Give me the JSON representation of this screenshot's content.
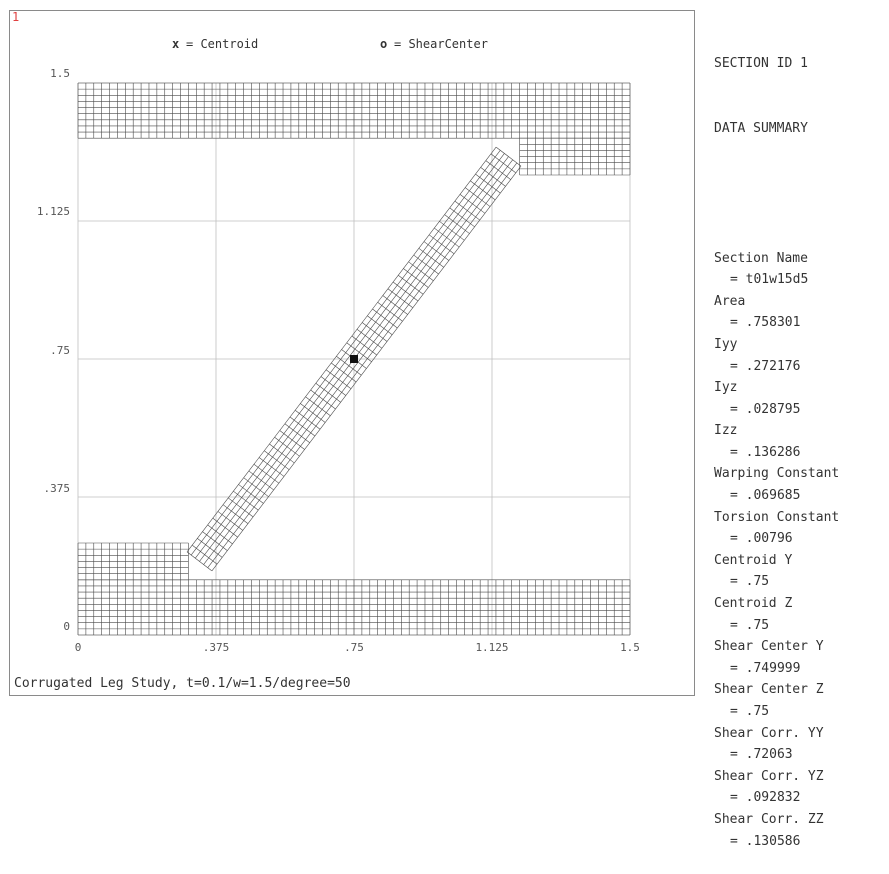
{
  "plot_number": "1",
  "legend": {
    "centroid_symbol": "x",
    "centroid_label": "= Centroid",
    "shear_symbol": "o",
    "shear_label": "= ShearCenter"
  },
  "axes": {
    "y_ticks": [
      "1.5",
      "1.125",
      ".75",
      ".375",
      "0"
    ],
    "x_ticks": [
      "0",
      ".375",
      ".75",
      "1.125",
      "1.5"
    ],
    "xlim": [
      0,
      1.5
    ],
    "ylim": [
      0,
      1.5
    ]
  },
  "section": {
    "header1": "SECTION ID 1",
    "header2": "DATA SUMMARY",
    "rows": [
      {
        "label": "Section Name",
        "value": "= t01w15d5"
      },
      {
        "label": "Area",
        "value": "= .758301"
      },
      {
        "label": "Iyy",
        "value": "= .272176"
      },
      {
        "label": "Iyz",
        "value": "= .028795"
      },
      {
        "label": "Izz",
        "value": "= .136286"
      },
      {
        "label": "Warping Constant",
        "value": "= .069685"
      },
      {
        "label": "Torsion Constant",
        "value": "= .00796"
      },
      {
        "label": "Centroid Y",
        "value": "= .75"
      },
      {
        "label": "Centroid Z",
        "value": "= .75"
      },
      {
        "label": "Shear Center Y",
        "value": "= .749999"
      },
      {
        "label": "Shear Center Z",
        "value": "= .75"
      },
      {
        "label": "Shear Corr. YY",
        "value": "= .72063"
      },
      {
        "label": "Shear Corr. YZ",
        "value": "= .092832"
      },
      {
        "label": "Shear Corr. ZZ",
        "value": "= .130586"
      }
    ]
  },
  "caption": "Corrugated Leg Study, t=0.1/w=1.5/degree=50",
  "colors": {
    "mesh": "#4a4a4a",
    "grid": "#bfbfbf",
    "plot_number": "#e04040"
  }
}
